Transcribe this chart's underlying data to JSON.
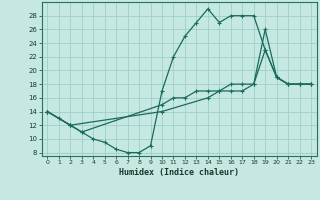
{
  "xlabel": "Humidex (Indice chaleur)",
  "bg_color": "#c5e8e3",
  "grid_color": "#9ecfc8",
  "line_color": "#1a6b5a",
  "line1_x": [
    0,
    1,
    2,
    3,
    4,
    5,
    6,
    7,
    8,
    9,
    10,
    11,
    12,
    13,
    14,
    15,
    16,
    17,
    18,
    19,
    20,
    21,
    22,
    23
  ],
  "line1_y": [
    14,
    13,
    12,
    11,
    10,
    9.5,
    8.5,
    8,
    8,
    9,
    17,
    22,
    25,
    27,
    29,
    27,
    28,
    28,
    28,
    23,
    19,
    18,
    18,
    18
  ],
  "line2_x": [
    0,
    2,
    3,
    10,
    11,
    12,
    13,
    14,
    15,
    16,
    17,
    18,
    19,
    20,
    21,
    22,
    23
  ],
  "line2_y": [
    14,
    12,
    11,
    15,
    16,
    16,
    17,
    17,
    17,
    18,
    18,
    18,
    23,
    19,
    18,
    18,
    18
  ],
  "line3_x": [
    0,
    2,
    10,
    14,
    15,
    16,
    17,
    18,
    19,
    20,
    21,
    22,
    23
  ],
  "line3_y": [
    14,
    12,
    14,
    16,
    17,
    17,
    17,
    18,
    26,
    19,
    18,
    18,
    18
  ],
  "xlim": [
    -0.5,
    23.5
  ],
  "ylim": [
    7.5,
    30
  ],
  "yticks": [
    8,
    10,
    12,
    14,
    16,
    18,
    20,
    22,
    24,
    26,
    28
  ],
  "xticks": [
    0,
    1,
    2,
    3,
    4,
    5,
    6,
    7,
    8,
    9,
    10,
    11,
    12,
    13,
    14,
    15,
    16,
    17,
    18,
    19,
    20,
    21,
    22,
    23
  ],
  "xticklabels": [
    "0",
    "1",
    "2",
    "3",
    "4",
    "5",
    "6",
    "7",
    "8",
    "9",
    "10",
    "11",
    "12",
    "13",
    "14",
    "15",
    "16",
    "17",
    "18",
    "19",
    "20",
    "21",
    "22",
    "23"
  ]
}
